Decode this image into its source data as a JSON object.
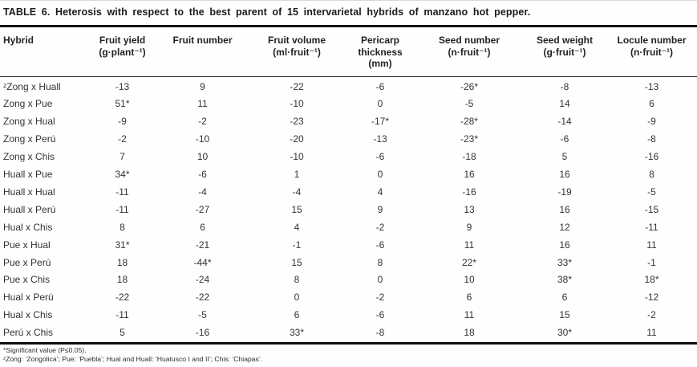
{
  "page": {
    "title": "TABLE 6. Heterosis with respect to the best parent of 15 intervarietal hybrids of manzano hot pepper."
  },
  "table": {
    "columns": [
      {
        "label": "Hybrid",
        "unit": ""
      },
      {
        "label": "Fruit yield",
        "unit": "(g·plant⁻¹)"
      },
      {
        "label": "Fruit number",
        "unit": ""
      },
      {
        "label": "Fruit volume",
        "unit": "(ml·fruit⁻¹)"
      },
      {
        "label": "Pericarp thickness",
        "unit": "(mm)"
      },
      {
        "label": "Seed number",
        "unit": "(n·fruit⁻¹)"
      },
      {
        "label": "Seed weight",
        "unit": "(g·fruit⁻¹)"
      },
      {
        "label": "Locule number",
        "unit": "(n·fruit⁻¹)"
      }
    ],
    "rows": [
      [
        "ᶻZong x Huall",
        "-13",
        "9",
        "-22",
        "-6",
        "-26*",
        "-8",
        "-13"
      ],
      [
        "Zong x Pue",
        "51*",
        "11",
        "-10",
        "0",
        "-5",
        "14",
        "6"
      ],
      [
        "Zong x Hual",
        "-9",
        "-2",
        "-23",
        "-17*",
        "-28*",
        "-14",
        "-9"
      ],
      [
        "Zong x Perú",
        "-2",
        "-10",
        "-20",
        "-13",
        "-23*",
        "-6",
        "-8"
      ],
      [
        "Zong x Chis",
        "7",
        "10",
        "-10",
        "-6",
        "-18",
        "5",
        "-16"
      ],
      [
        "Huall x Pue",
        "34*",
        "-6",
        "1",
        "0",
        "16",
        "16",
        "8"
      ],
      [
        "Huall x Hual",
        "-11",
        "-4",
        "-4",
        "4",
        "-16",
        "-19",
        "-5"
      ],
      [
        "Huall x Perú",
        "-11",
        "-27",
        "15",
        "9",
        "13",
        "16",
        "-15"
      ],
      [
        "Hual x Chis",
        "8",
        "6",
        "4",
        "-2",
        "9",
        "12",
        "-11"
      ],
      [
        "Pue x Hual",
        "31*",
        "-21",
        "-1",
        "-6",
        "11",
        "16",
        "11"
      ],
      [
        "Pue x Perú",
        "18",
        "-44*",
        "15",
        "8",
        "22*",
        "33*",
        "-1"
      ],
      [
        "Pue x Chis",
        "18",
        "-24",
        "8",
        "0",
        "10",
        "38*",
        "18*"
      ],
      [
        "Hual x Perú",
        "-22",
        "-22",
        "0",
        "-2",
        "6",
        "6",
        "-12"
      ],
      [
        "Hual x Chis",
        "-11",
        "-5",
        "6",
        "-6",
        "11",
        "15",
        "-2"
      ],
      [
        "Perú x Chis",
        "5",
        "-16",
        "33*",
        "-8",
        "18",
        "30*",
        "11"
      ]
    ]
  },
  "footnotes": [
    "*Significant value (P≤0.05).",
    "ᶻZong: ‘Zongolica’; Pue: ‘Puebla’; Hual and Huall: ‘Huatusco I and II’; Chis: ‘Chiapas’."
  ]
}
